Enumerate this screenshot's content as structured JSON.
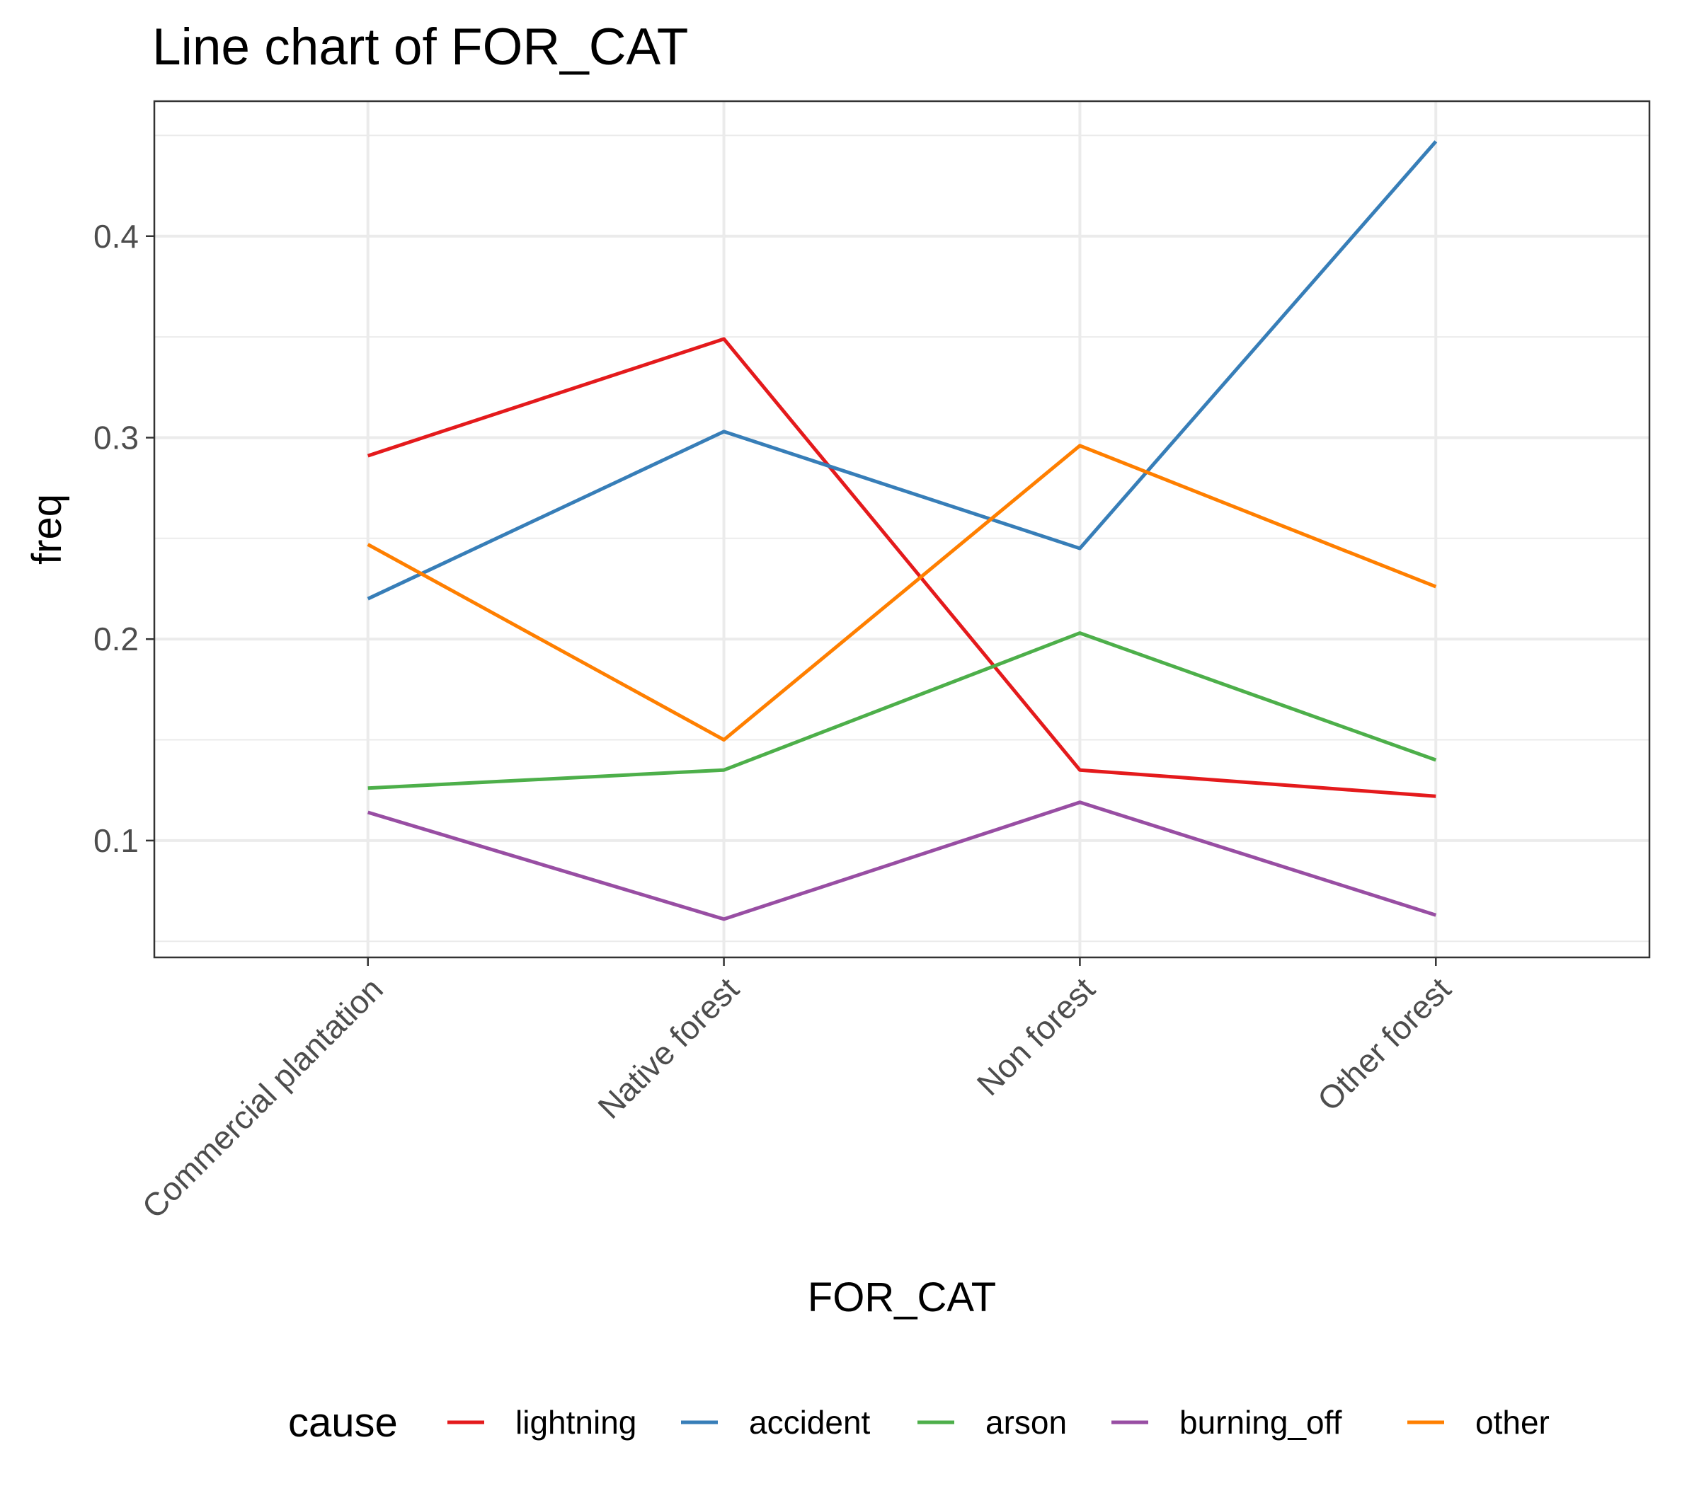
{
  "chart_data": {
    "type": "line",
    "title": "Line chart of FOR_CAT",
    "xlabel": "FOR_CAT",
    "ylabel": "freq",
    "categories": [
      "Commercial plantation",
      "Native forest",
      "Non forest",
      "Other forest"
    ],
    "ylim": [
      0.042,
      0.467
    ],
    "yticks": [
      0.1,
      0.2,
      0.3,
      0.4
    ],
    "ytick_labels": [
      "0.1",
      "0.2",
      "0.3",
      "0.4"
    ],
    "grid": true,
    "legend": {
      "title": "cause",
      "position": "bottom"
    },
    "series": [
      {
        "name": "lightning",
        "color": "#E41A1C",
        "values": [
          0.291,
          0.349,
          0.135,
          0.122
        ]
      },
      {
        "name": "accident",
        "color": "#377EB8",
        "values": [
          0.22,
          0.303,
          0.245,
          0.447
        ]
      },
      {
        "name": "arson",
        "color": "#4DAF4A",
        "values": [
          0.126,
          0.135,
          0.203,
          0.14
        ]
      },
      {
        "name": "burning_off",
        "color": "#984EA3",
        "values": [
          0.114,
          0.061,
          0.119,
          0.063
        ]
      },
      {
        "name": "other",
        "color": "#FF7F00",
        "values": [
          0.247,
          0.15,
          0.296,
          0.226
        ]
      }
    ]
  }
}
